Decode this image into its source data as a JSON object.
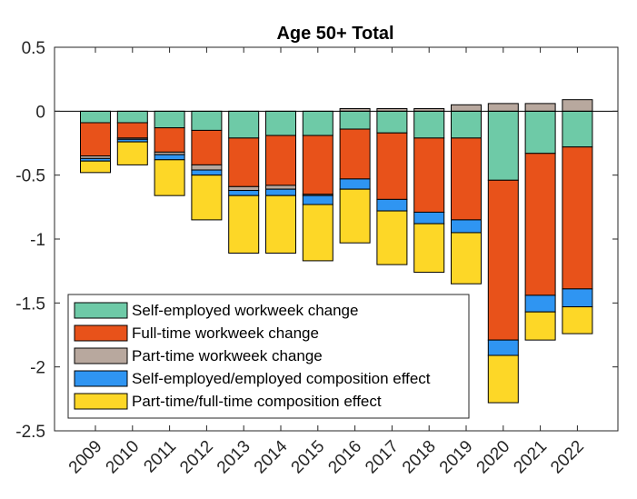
{
  "chart_data": {
    "type": "bar",
    "stacked": true,
    "title": "Age 50+ Total",
    "categories": [
      "2009",
      "2010",
      "2011",
      "2012",
      "2013",
      "2014",
      "2015",
      "2016",
      "2017",
      "2018",
      "2019",
      "2020",
      "2021",
      "2022"
    ],
    "ylim": [
      -2.5,
      0.5
    ],
    "yticks": [
      0.5,
      0,
      -0.5,
      -1,
      -1.5,
      -2,
      -2.5
    ],
    "ytick_labels": [
      "0.5",
      "0",
      "-0.5",
      "-1",
      "-1.5",
      "-2",
      "-2.5"
    ],
    "grid": false,
    "zero_line": true,
    "legend_position": "bottom-left",
    "series": [
      {
        "name": "Self-employed workweek change",
        "color": "#6ECAA7",
        "values": [
          -0.09,
          -0.09,
          -0.13,
          -0.15,
          -0.21,
          -0.19,
          -0.19,
          -0.14,
          -0.17,
          -0.21,
          -0.21,
          -0.54,
          -0.33,
          -0.28
        ]
      },
      {
        "name": "Full-time workweek change",
        "color": "#E8521A",
        "values": [
          -0.26,
          -0.12,
          -0.19,
          -0.27,
          -0.38,
          -0.39,
          -0.46,
          -0.39,
          -0.52,
          -0.58,
          -0.64,
          -1.25,
          -1.11,
          -1.11
        ]
      },
      {
        "name": "Part-time workweek change",
        "color": "#B8A89E",
        "values": [
          -0.02,
          -0.01,
          -0.02,
          -0.04,
          -0.03,
          -0.03,
          -0.01,
          0.02,
          0.02,
          0.02,
          0.05,
          0.06,
          0.06,
          0.09
        ]
      },
      {
        "name": "Self-employed/employed composition effect",
        "color": "#2F95F2",
        "values": [
          -0.02,
          -0.02,
          -0.04,
          -0.04,
          -0.04,
          -0.05,
          -0.07,
          -0.08,
          -0.09,
          -0.09,
          -0.1,
          -0.12,
          -0.13,
          -0.14
        ]
      },
      {
        "name": "Part-time/full-time composition effect",
        "color": "#FDD727",
        "values": [
          -0.09,
          -0.18,
          -0.28,
          -0.35,
          -0.45,
          -0.45,
          -0.44,
          -0.42,
          -0.42,
          -0.38,
          -0.4,
          -0.37,
          -0.22,
          -0.21
        ]
      }
    ]
  }
}
